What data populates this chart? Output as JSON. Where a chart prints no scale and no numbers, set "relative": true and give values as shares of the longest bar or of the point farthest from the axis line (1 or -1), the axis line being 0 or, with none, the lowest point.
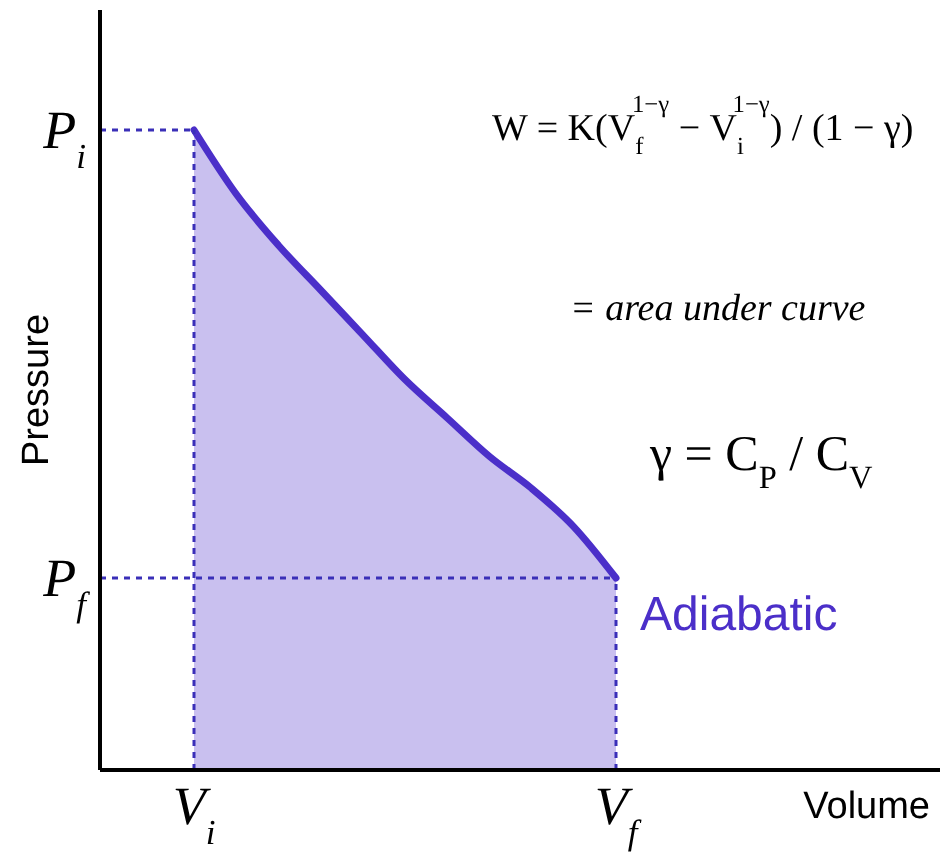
{
  "chart_data": {
    "type": "area",
    "xlabel": "Volume",
    "ylabel": "Pressure",
    "relative": true,
    "categories": [
      "V$_{i}$",
      null,
      null,
      null,
      null,
      null,
      null,
      null,
      null,
      null,
      "V$_{f}$"
    ],
    "series": [
      {
        "name": "Adiabatic",
        "color": "#4b2fc9",
        "values": [
          1,
          0.9,
          0.82,
          0.75,
          0.68,
          0.61,
          0.55,
          0.49,
          0.44,
          0.38,
          0.3
        ]
      }
    ],
    "ref_lines": [
      {
        "axis": "x",
        "value": "V$_{i}$",
        "color": "#3a2fb8",
        "line_style": "dotted"
      },
      {
        "axis": "x",
        "value": "V$_{f}$",
        "color": "#3a2fb8",
        "line_style": "dotted"
      },
      {
        "axis": "y",
        "value": 1,
        "label": "P$_{i}$",
        "color": "#3a2fb8",
        "line_style": "dotted"
      },
      {
        "axis": "y",
        "value": 0.3,
        "label": "P$_{f}$",
        "color": "#3a2fb8",
        "line_style": "dotted"
      }
    ],
    "annotations": [
      "W = K(V$_{f}$$^{1−γ}$ − V$_{i}$$^{1−γ}$) / (1 − γ)",
      "= area under curve",
      "γ = C$_{P}$ / C$_{V}$"
    ],
    "line_style": "solid"
  }
}
